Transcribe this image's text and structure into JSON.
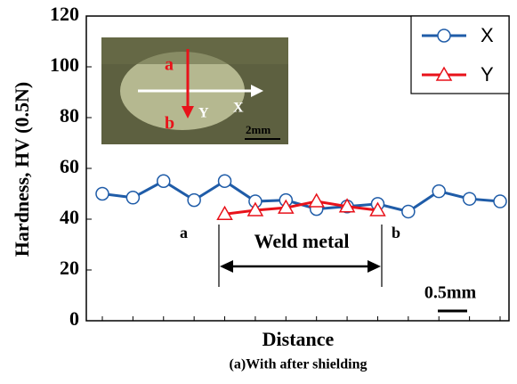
{
  "chart_data": {
    "type": "line",
    "y_label": "Hardness, HV (0.5N)",
    "x_label": "Distance",
    "caption": "(a)With after shielding",
    "categories": [
      null,
      null,
      null,
      null,
      null,
      null,
      null,
      null,
      null,
      null,
      null,
      null,
      null,
      null
    ],
    "series": [
      {
        "name": "X",
        "color": "#1f5ca8",
        "marker": "circle",
        "values": [
          50,
          48.5,
          55,
          47.5,
          55,
          47,
          47.5,
          44,
          45,
          46,
          43,
          51,
          48,
          47
        ]
      },
      {
        "name": "Y",
        "color": "#e8121a",
        "marker": "triangle",
        "values": [
          null,
          null,
          null,
          null,
          42,
          43.5,
          44.5,
          47,
          45,
          43.5,
          null,
          null,
          null,
          null
        ]
      }
    ],
    "ylim": [
      0,
      120
    ],
    "yticks": [
      0,
      20,
      40,
      60,
      80,
      100,
      120
    ],
    "legend": "top-right",
    "annotations": {
      "a": "a",
      "b": "b",
      "weld": "Weld metal",
      "scale": "0.5mm"
    },
    "inset": {
      "a": "a",
      "b": "b",
      "y": "Y",
      "x": "X",
      "scale": "2mm"
    }
  }
}
